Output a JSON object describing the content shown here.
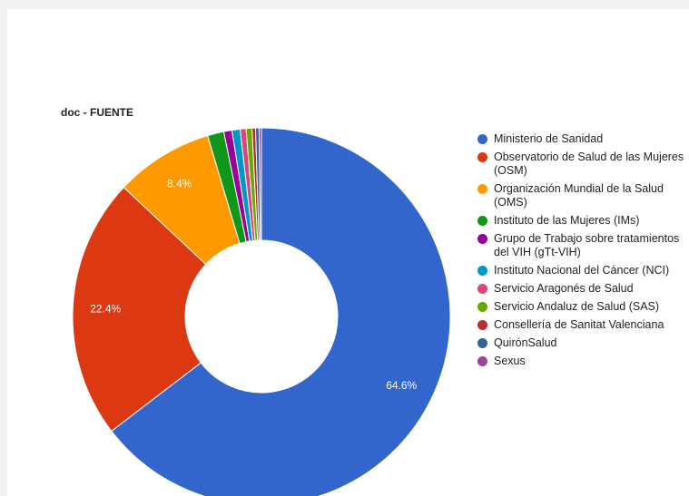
{
  "chart_data": {
    "type": "pie",
    "title": "doc - FUENTE",
    "donut": true,
    "legend_position": "right",
    "slices": [
      {
        "name": "Ministerio de Sanidad",
        "value": 64.6,
        "label": "64.6%",
        "color": "#3366cc"
      },
      {
        "name": "Observatorio de Salud de las Mujeres (OSM)",
        "value": 22.4,
        "label": "22.4%",
        "color": "#dc3912"
      },
      {
        "name": "Organización Mundial de la Salud (OMS)",
        "value": 8.4,
        "label": "8.4%",
        "color": "#ff9900"
      },
      {
        "name": "Instituto de las Mujeres (IMs)",
        "value": 1.4,
        "label": "",
        "color": "#109618"
      },
      {
        "name": "Grupo de Trabajo sobre tratamientos del VIH (gTt-VIH)",
        "value": 0.7,
        "label": "",
        "color": "#990099"
      },
      {
        "name": "Instituto Nacional del Cáncer (NCI)",
        "value": 0.7,
        "label": "",
        "color": "#0099c6"
      },
      {
        "name": "Servicio Aragonés de Salud",
        "value": 0.5,
        "label": "",
        "color": "#dd4477"
      },
      {
        "name": "Servicio Andaluz de Salud (SAS)",
        "value": 0.5,
        "label": "",
        "color": "#66aa00"
      },
      {
        "name": "Consellería de Sanitat Valenciana",
        "value": 0.3,
        "label": "",
        "color": "#b82e2e"
      },
      {
        "name": "QuirónSalud",
        "value": 0.3,
        "label": "",
        "color": "#316395"
      },
      {
        "name": "Sexus",
        "value": 0.2,
        "label": "",
        "color": "#994499"
      }
    ]
  }
}
